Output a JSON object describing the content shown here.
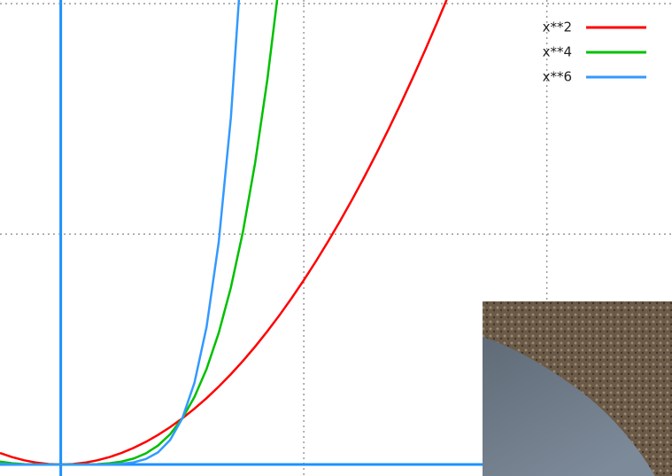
{
  "chart_data": {
    "type": "line",
    "xlim": [
      -0.5,
      5.03
    ],
    "ylim": [
      -0.25,
      10.08
    ],
    "xticks": [
      0,
      2,
      4
    ],
    "yticks": [
      0,
      5,
      10
    ],
    "grid": true,
    "legend": "upper-right",
    "series": [
      {
        "name": "x**2",
        "color": "#ff0000",
        "x": [
          -0.5,
          -0.4,
          -0.3,
          -0.2,
          -0.1,
          0,
          0.1,
          0.2,
          0.3,
          0.4,
          0.5,
          0.6,
          0.7,
          0.8,
          0.9,
          1,
          1.1,
          1.2,
          1.3,
          1.4,
          1.5,
          1.6,
          1.7,
          1.8,
          1.9,
          2,
          2.1,
          2.2,
          2.3,
          2.4,
          2.5,
          2.6,
          2.7,
          2.8,
          2.9,
          3,
          3.1,
          3.2
        ],
        "values": [
          0.25,
          0.16,
          0.09,
          0.04,
          0.01,
          0,
          0.01,
          0.04,
          0.09,
          0.16,
          0.25,
          0.36,
          0.49,
          0.64,
          0.81,
          1,
          1.21,
          1.44,
          1.69,
          1.96,
          2.25,
          2.56,
          2.89,
          3.24,
          3.61,
          4,
          4.41,
          4.84,
          5.29,
          5.76,
          6.25,
          6.76,
          7.29,
          7.84,
          8.41,
          9,
          9.61,
          10.24
        ]
      },
      {
        "name": "x**4",
        "color": "#00c000",
        "x": [
          -0.5,
          -0.4,
          -0.3,
          -0.2,
          -0.1,
          0,
          0.1,
          0.2,
          0.3,
          0.4,
          0.5,
          0.6,
          0.7,
          0.8,
          0.9,
          1,
          1.1,
          1.2,
          1.3,
          1.4,
          1.5,
          1.6,
          1.7,
          1.8,
          1.9
        ],
        "values": [
          0.0625,
          0.0256,
          0.0081,
          0.0016,
          0.0001,
          0,
          0.0001,
          0.0016,
          0.0081,
          0.0256,
          0.0625,
          0.1296,
          0.2401,
          0.4096,
          0.6561,
          1,
          1.4641,
          2.0736,
          2.8561,
          3.8416,
          5.0625,
          6.5536,
          8.3521,
          10.4976,
          13.0321
        ]
      },
      {
        "name": "x**6",
        "color": "#3399ff",
        "x": [
          -0.5,
          -0.4,
          -0.3,
          -0.2,
          -0.1,
          0,
          0.1,
          0.2,
          0.3,
          0.4,
          0.5,
          0.6,
          0.7,
          0.8,
          0.9,
          1,
          1.1,
          1.2,
          1.3,
          1.4,
          1.5
        ],
        "values": [
          0.015625,
          0.004096,
          0.000729,
          6.4e-05,
          1e-06,
          0,
          1e-06,
          6.4e-05,
          0.000729,
          0.004096,
          0.015625,
          0.046656,
          0.117649,
          0.262144,
          0.531441,
          1,
          1.771561,
          2.985984,
          4.826809,
          7.529536,
          11.390625
        ]
      }
    ]
  }
}
